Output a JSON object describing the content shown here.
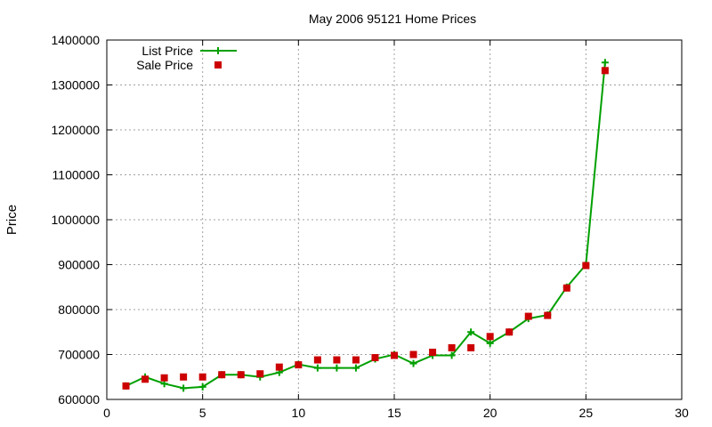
{
  "chart_data": {
    "type": "line",
    "title": "May 2006 95121 Home Prices",
    "xlabel": "",
    "ylabel": "Price",
    "xlim": [
      0,
      30
    ],
    "ylim": [
      600000,
      1400000
    ],
    "x_ticks": [
      "0",
      "5",
      "10",
      "15",
      "20",
      "25",
      "30"
    ],
    "y_ticks": [
      "600000",
      "700000",
      "800000",
      "900000",
      "1000000",
      "1100000",
      "1200000",
      "1300000",
      "1400000"
    ],
    "grid": true,
    "legend_position": "top-left",
    "series": [
      {
        "name": "List Price",
        "style": "line-with-plus-markers",
        "color": "#00a000",
        "x": [
          1,
          2,
          3,
          4,
          5,
          6,
          7,
          8,
          9,
          10,
          11,
          12,
          13,
          14,
          15,
          16,
          17,
          18,
          19,
          20,
          21,
          22,
          23,
          24,
          25,
          26
        ],
        "values": [
          630000,
          650000,
          635000,
          625000,
          628000,
          655000,
          655000,
          650000,
          660000,
          678000,
          670000,
          670000,
          670000,
          690000,
          700000,
          680000,
          698000,
          698000,
          750000,
          725000,
          750000,
          780000,
          788000,
          850000,
          900000,
          1350000
        ]
      },
      {
        "name": "Sale Price",
        "style": "square-markers",
        "color": "#cc0000",
        "x": [
          1,
          2,
          3,
          4,
          5,
          6,
          7,
          8,
          9,
          10,
          11,
          12,
          13,
          14,
          15,
          16,
          17,
          18,
          19,
          20,
          21,
          22,
          23,
          24,
          25,
          26
        ],
        "values": [
          630000,
          645000,
          648000,
          650000,
          650000,
          655000,
          655000,
          657000,
          672000,
          677000,
          688000,
          688000,
          688000,
          693000,
          698000,
          700000,
          705000,
          715000,
          715000,
          740000,
          750000,
          785000,
          787000,
          848000,
          898000,
          1332000
        ]
      }
    ]
  }
}
